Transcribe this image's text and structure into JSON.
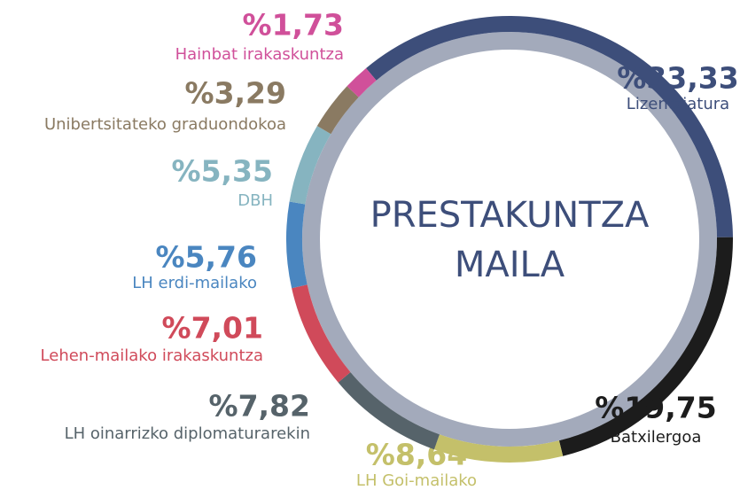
{
  "chart_data": {
    "type": "donut",
    "title": "PRESTAKUNTZA MAILA",
    "categories": [
      "Lizentziatura",
      "Batxilergoa",
      "LH Goi-mailako",
      "LH oinarrizko diplomaturarekin",
      "Lehen-mailako irakaskuntza",
      "LH erdi-mailako",
      "DBH",
      "Unibertsitateko graduondokoa",
      "Hainbat irakaskuntza"
    ],
    "values": [
      33.33,
      19.75,
      8.64,
      7.82,
      7.01,
      5.76,
      5.35,
      3.29,
      1.73
    ],
    "value_labels": [
      "%33,33",
      "%19,75",
      "%8,64",
      "%7,82",
      "%7,01",
      "%5,76",
      "%5,35",
      "%3,29",
      "%1,73"
    ],
    "colors": [
      "#3d4e7a",
      "#1c1c1c",
      "#c4c06a",
      "#56636a",
      "#d04a5a",
      "#4a86c0",
      "#86b4c0",
      "#8a7a62",
      "#d0509a"
    ]
  }
}
